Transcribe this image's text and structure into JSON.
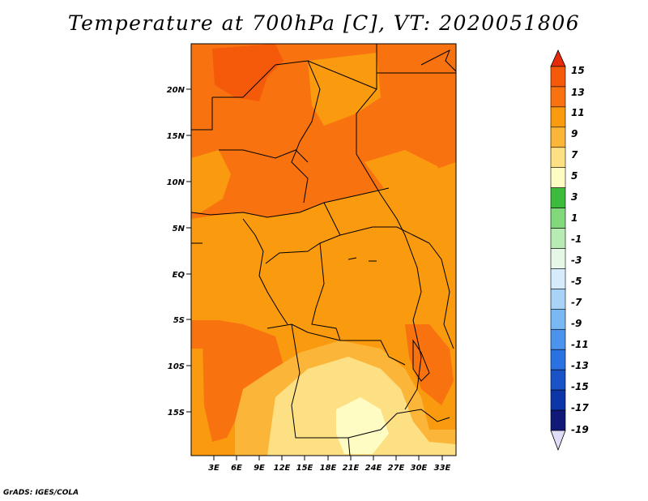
{
  "title": "Temperature at 700hPa [C], VT: 2020051806",
  "credit": "GrADS: IGES/COLA",
  "lat_labels": [
    "20N",
    "15N",
    "10N",
    "5N",
    "EQ",
    "5S",
    "10S",
    "15S"
  ],
  "lon_labels": [
    "3E",
    "6E",
    "9E",
    "12E",
    "15E",
    "18E",
    "21E",
    "24E",
    "27E",
    "30E",
    "33E"
  ],
  "colorbar": {
    "labels": [
      "15",
      "13",
      "11",
      "9",
      "7",
      "5",
      "3",
      "1",
      "-1",
      "-3",
      "-5",
      "-7",
      "-9",
      "-11",
      "-13",
      "-15",
      "-17",
      "-19"
    ],
    "colors": [
      "#e62b0a",
      "#f55a0b",
      "#f8730f",
      "#fa9a0e",
      "#fbb63a",
      "#fde083",
      "#fefbc3",
      "#3dbb3c",
      "#81d97c",
      "#b8ebb4",
      "#e5f7e6",
      "#d6ebfb",
      "#a8d3f7",
      "#7ab8f3",
      "#4b93ec",
      "#2a72e1",
      "#1a53c8",
      "#0c36a8",
      "#101878",
      "#e0def6"
    ]
  },
  "colors": {
    "c9": "#fa9a0e",
    "c11": "#f8730f",
    "c13": "#f55a0b",
    "c7": "#fbb63a",
    "c5": "#fde083",
    "c3": "#fefbc3",
    "border": "#000000"
  }
}
